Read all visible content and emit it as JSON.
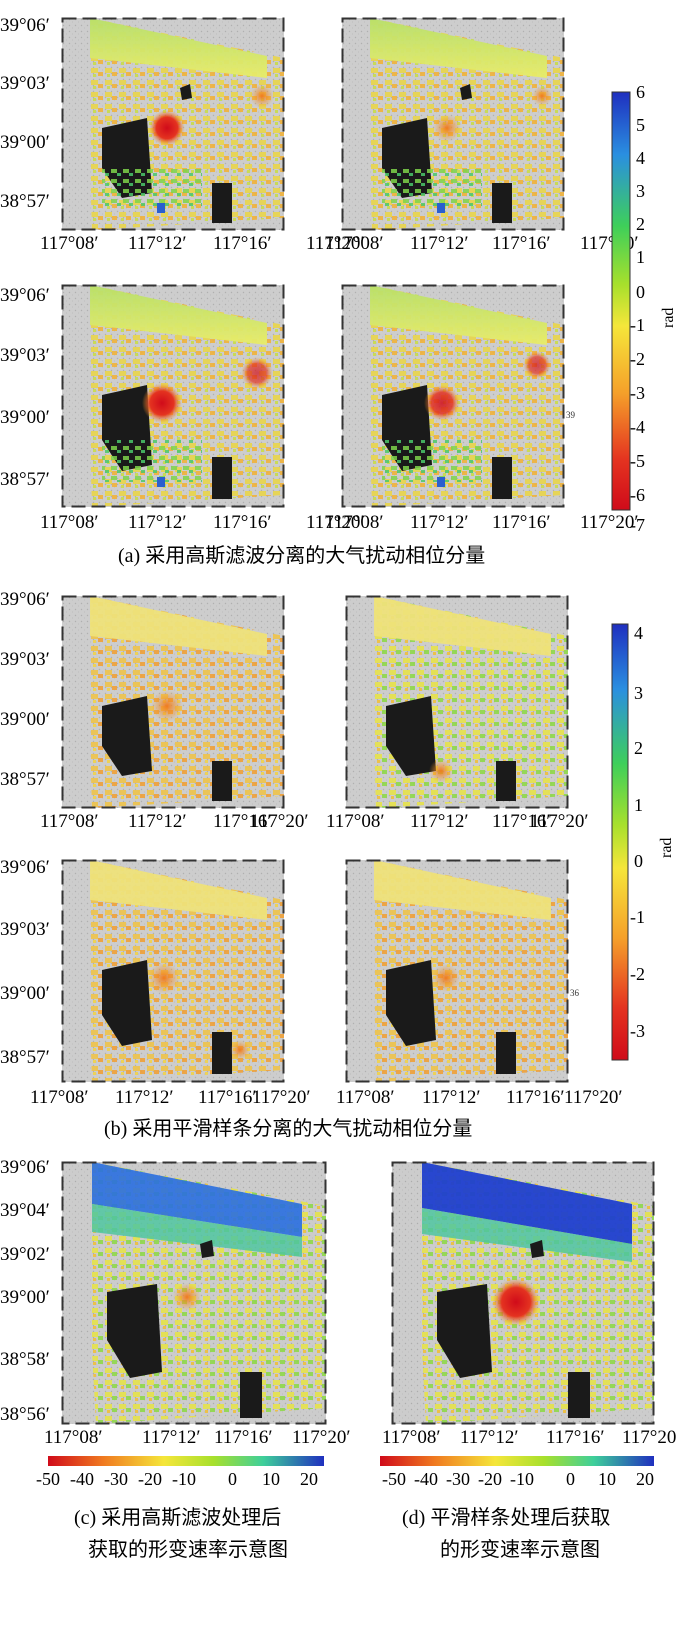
{
  "figure_a": {
    "y_ticks": [
      "39°06′",
      "39°03′",
      "39°00′",
      "38°57′"
    ],
    "x_ticks": [
      "117°08′",
      "117°12′",
      "117°16′",
      "117°20′"
    ],
    "colorbar": {
      "ticks": [
        "6",
        "5",
        "4",
        "3",
        "2",
        "1",
        "0",
        "-1",
        "-2",
        "-3",
        "-4",
        "-5",
        "-6",
        "-7"
      ],
      "unit": "rad",
      "colors": [
        "#1f2fbf",
        "#2a8fe0",
        "#3ecf5a",
        "#a7e02c",
        "#f5e63a",
        "#f5a02a",
        "#e43320",
        "#d00b1a"
      ]
    },
    "side_note": "39",
    "caption": "(a) 采用高斯滤波分离的大气扰动相位分量"
  },
  "figure_b": {
    "y_ticks": [
      "39°06′",
      "39°03′",
      "39°00′",
      "38°57′"
    ],
    "x_ticks": [
      "117°08′",
      "117°12′",
      "117°16′",
      "117°20′"
    ],
    "colorbar": {
      "ticks": [
        "4",
        "3",
        "2",
        "1",
        "0",
        "-1",
        "-2",
        "-3"
      ],
      "unit": "rad",
      "colors": [
        "#1f2fbf",
        "#2a8fe0",
        "#3ecf5a",
        "#a7e02c",
        "#f5e63a",
        "#f5a02a",
        "#e43320",
        "#c80a1a"
      ]
    },
    "side_note": "36",
    "caption": "(b) 采用平滑样条分离的大气扰动相位分量"
  },
  "figure_c": {
    "y_ticks": [
      "39°06′",
      "39°04′",
      "39°02′",
      "39°00′",
      "38°58′",
      "38°56′"
    ],
    "x_ticks": [
      "117°08′",
      "117°12′",
      "117°16′",
      "117°20′"
    ],
    "colorbar_ticks": [
      "-50",
      "-40",
      "-30",
      "-20",
      "-10",
      "0",
      "10",
      "20"
    ],
    "caption_line1": "(c) 采用高斯滤波处理后",
    "caption_line2": "获取的形变速率示意图"
  },
  "figure_d": {
    "x_ticks": [
      "117°08′",
      "117°12′",
      "117°16′",
      "117°20"
    ],
    "colorbar_ticks": [
      "-50",
      "-40",
      "-30",
      "-20",
      "-10",
      "0",
      "10",
      "20"
    ],
    "caption_line1": "(d) 平滑样条处理后获取",
    "caption_line2": "的形变速率示意图"
  }
}
